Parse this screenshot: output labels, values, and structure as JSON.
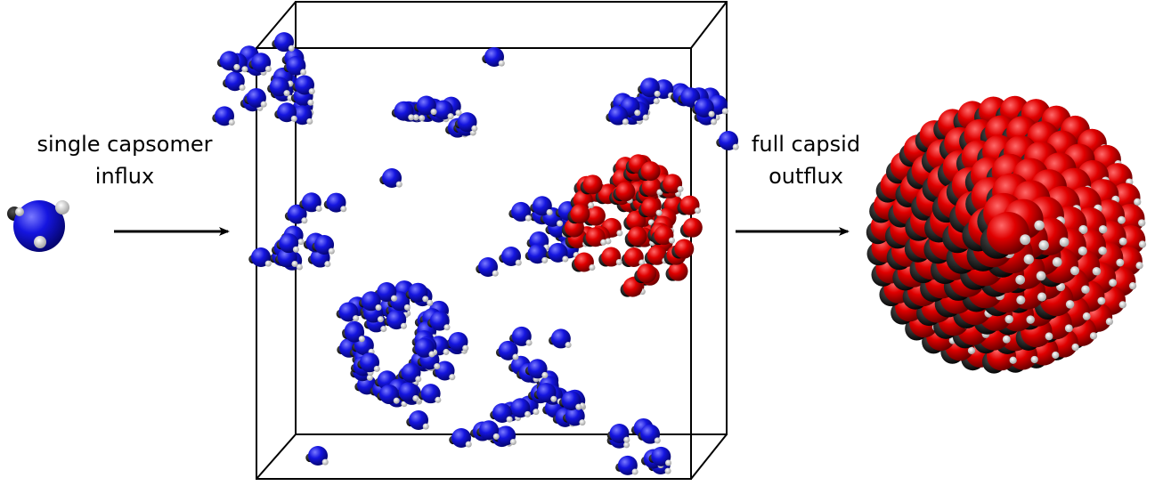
{
  "labels": {
    "influx_line1": "single capsomer",
    "influx_line2": "influx",
    "outflux_line1": "full capsid",
    "outflux_line2": "outflux"
  },
  "colors": {
    "capsomer": "#1010d8",
    "capsid": "#e00000",
    "bond": "#e0e0e0",
    "box": "#000000"
  },
  "icons": {
    "single_capsomer": "blue-sphere-icon",
    "full_capsid": "red-sphere-capsid-icon"
  }
}
